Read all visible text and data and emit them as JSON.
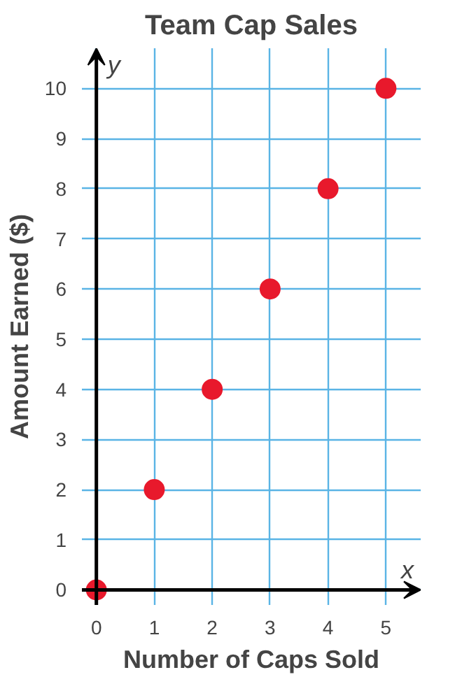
{
  "chart_data": {
    "type": "scatter",
    "title": "Team Cap Sales",
    "xlabel": "Number of Caps Sold",
    "ylabel": "Amount Earned ($)",
    "annotations": [
      "y",
      "x"
    ],
    "x": [
      0,
      1,
      2,
      3,
      4,
      5
    ],
    "values": [
      0,
      2,
      4,
      6,
      8,
      10
    ],
    "color": "#e8192c",
    "marker": "circle",
    "xlim": [
      -0.25,
      5.6
    ],
    "ylim": [
      -0.3,
      10.8
    ],
    "xticks": [
      0,
      1,
      2,
      3,
      4,
      5
    ],
    "yticks": [
      0,
      1,
      2,
      3,
      4,
      5,
      6,
      7,
      8,
      9,
      10
    ],
    "grid": true
  }
}
